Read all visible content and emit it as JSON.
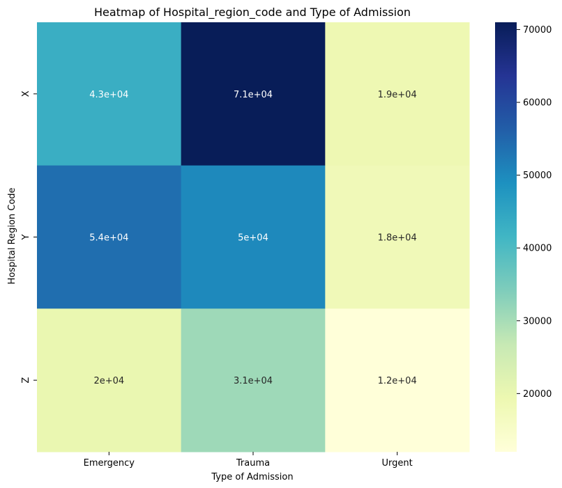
{
  "chart_data": {
    "type": "heatmap",
    "title": "Heatmap of Hospital_region_code and Type of Admission",
    "xlabel": "Type of Admission",
    "ylabel": "Hospital Region Code",
    "x_categories": [
      "Emergency",
      "Trauma",
      "Urgent"
    ],
    "y_categories": [
      "X",
      "Y",
      "Z"
    ],
    "values": [
      [
        43000,
        71000,
        19000
      ],
      [
        54000,
        50000,
        18000
      ],
      [
        20000,
        31000,
        12000
      ]
    ],
    "annotations": [
      [
        "4.3e+04",
        "7.1e+04",
        "1.9e+04"
      ],
      [
        "5.4e+04",
        "5e+04",
        "1.8e+04"
      ],
      [
        "2e+04",
        "3.1e+04",
        "1.2e+04"
      ]
    ],
    "colorbar": {
      "colormap": "YlGnBu",
      "range": [
        12000,
        71000
      ],
      "ticks": [
        20000,
        30000,
        40000,
        50000,
        60000,
        70000
      ],
      "tick_labels": [
        "20000",
        "30000",
        "40000",
        "50000",
        "60000",
        "70000"
      ]
    },
    "colors": [
      "#ffffd9",
      "#edf8b1",
      "#c7e9b4",
      "#7fcdbb",
      "#41b6c4",
      "#1d91c0",
      "#225ea8",
      "#253494",
      "#081d58"
    ]
  }
}
